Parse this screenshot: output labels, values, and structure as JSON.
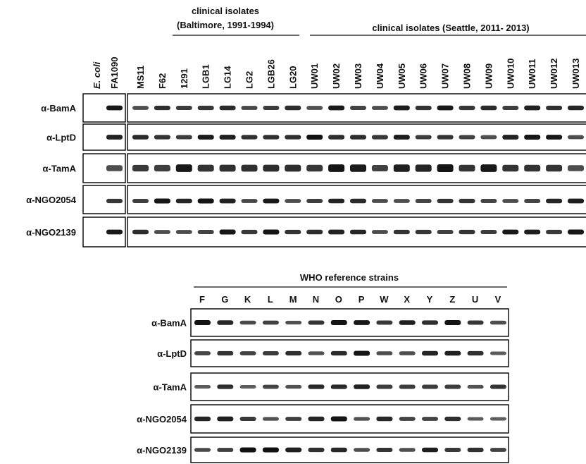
{
  "top": {
    "header_baltimore": [
      "clinical isolates",
      "(Baltimore, 1991-1994)"
    ],
    "header_seattle": "clinical isolates (Seattle, 2011- 2013)",
    "lanes": [
      "E. coli",
      "FA1090",
      "MS11",
      "F62",
      "1291",
      "LGB1",
      "LG14",
      "LG2",
      "LGB26",
      "LG20",
      "UW01",
      "UW02",
      "UW03",
      "UW04",
      "UW05",
      "UW06",
      "UW07",
      "UW08",
      "UW09",
      "UW010",
      "UW011",
      "UW012",
      "UW013"
    ],
    "rows": [
      "α-BamA",
      "α-LptD",
      "α-TamA",
      "α-NGO2054",
      "α-NGO2139"
    ]
  },
  "bottom": {
    "header": "WHO reference strains",
    "lanes": [
      "F",
      "G",
      "K",
      "L",
      "M",
      "N",
      "O",
      "P",
      "W",
      "X",
      "Y",
      "Z",
      "U",
      "V"
    ],
    "rows": [
      "α-BamA",
      "α-LptD",
      "α-TamA",
      "α-NGO2054",
      "α-NGO2139"
    ]
  }
}
